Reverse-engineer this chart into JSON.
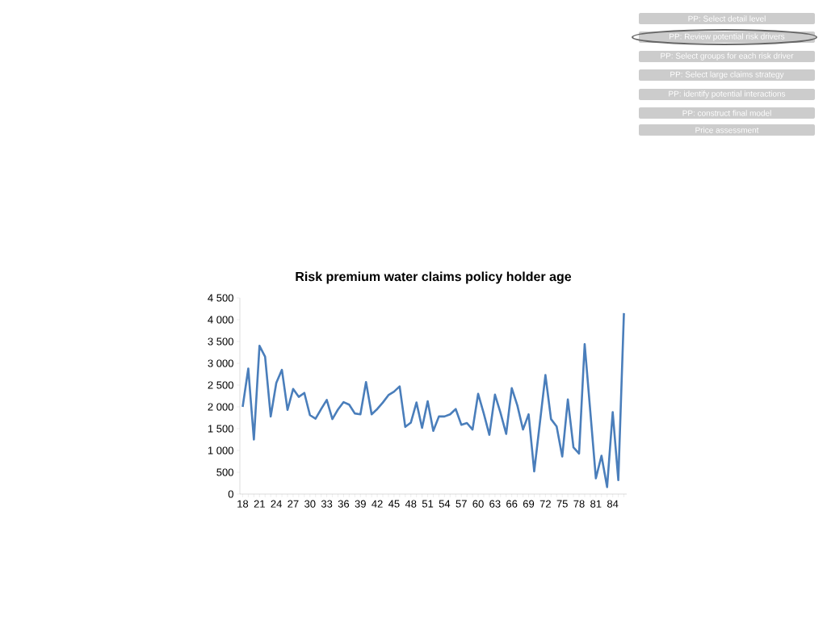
{
  "chart_data": {
    "type": "line",
    "title": "Risk premium water claims policy holder age",
    "categories": [
      "18",
      null,
      null,
      "21",
      null,
      null,
      "24",
      null,
      null,
      "27",
      null,
      null,
      "30",
      null,
      null,
      "33",
      null,
      null,
      "36",
      null,
      null,
      "39",
      null,
      null,
      "42",
      null,
      null,
      "45",
      null,
      null,
      "48",
      null,
      null,
      "51",
      null,
      null,
      "54",
      null,
      null,
      "57",
      null,
      null,
      "60",
      null,
      null,
      "63",
      null,
      null,
      "66",
      null,
      null,
      "69",
      null,
      null,
      "72",
      null,
      null,
      "75",
      null,
      null,
      "78",
      null,
      null,
      "81",
      null,
      null,
      "84",
      null,
      null
    ],
    "values": [
      2000,
      2880,
      1250,
      3400,
      3150,
      1780,
      2550,
      2850,
      1930,
      2410,
      2230,
      2320,
      1810,
      1730,
      1950,
      2160,
      1720,
      1940,
      2110,
      2050,
      1850,
      1830,
      2570,
      1830,
      1950,
      2100,
      2270,
      2350,
      2470,
      1540,
      1640,
      2100,
      1520,
      2130,
      1450,
      1780,
      1780,
      1830,
      1950,
      1590,
      1630,
      1480,
      2300,
      1850,
      1360,
      2280,
      1860,
      1380,
      2430,
      2030,
      1480,
      1830,
      520,
      1620,
      2730,
      1720,
      1550,
      860,
      2170,
      1070,
      930,
      3440,
      1900,
      360,
      880,
      160,
      1880,
      320,
      4150
    ],
    "color": "#4a7ebb",
    "marker": "none",
    "line_style": "solid",
    "ylim": [
      0,
      4500
    ],
    "yticks": [
      0,
      500,
      {
        "value": 1000,
        "label": "1 000"
      },
      {
        "value": 1500,
        "label": "1 500"
      },
      {
        "value": 2000,
        "label": "2 000"
      },
      {
        "value": 2500,
        "label": "2 500"
      },
      {
        "value": 3000,
        "label": "3 000"
      },
      {
        "value": 3500,
        "label": "3 500"
      },
      {
        "value": 4000,
        "label": "4 000"
      },
      {
        "value": 4500,
        "label": "4 500"
      }
    ],
    "annotations": [
      "PP: Select detail level",
      "PP: Review potential risk drivers",
      "PP: Select groups for each risk driver",
      "PP: Select large claims strategy",
      "PP: identify potential interactions",
      "PP: construct final model",
      "Price assessment"
    ]
  }
}
